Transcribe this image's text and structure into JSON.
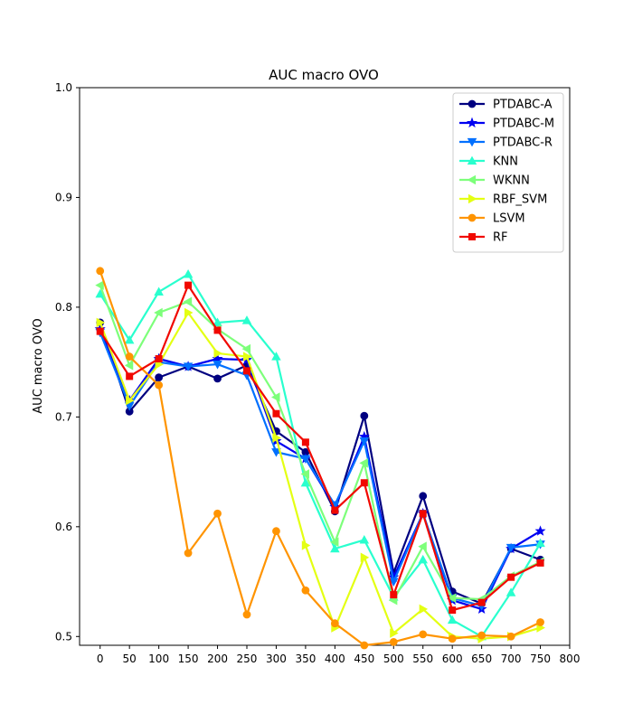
{
  "chart_data": {
    "type": "line",
    "title": "AUC macro OVO",
    "xlabel": "",
    "ylabel": "AUC macro OVO",
    "xlim": [
      -35,
      800
    ],
    "ylim": [
      0.492,
      1.0
    ],
    "xticks": [
      "0",
      "50",
      "100",
      "150",
      "200",
      "250",
      "300",
      "350",
      "400",
      "450",
      "500",
      "550",
      "600",
      "650",
      "700",
      "750",
      "800"
    ],
    "yticks": [
      "0.5",
      "0.6",
      "0.7",
      "0.8",
      "0.9",
      "1.0"
    ],
    "legend_position": "top-right",
    "grid": false,
    "x": [
      0,
      50,
      100,
      150,
      200,
      250,
      300,
      350,
      400,
      450,
      500,
      550,
      600,
      650,
      700,
      750
    ],
    "series": [
      {
        "name": "PTDABC-A",
        "color": "#000080",
        "marker": "circle",
        "values": [
          0.786,
          0.705,
          0.736,
          0.746,
          0.735,
          0.747,
          0.687,
          0.668,
          0.614,
          0.701,
          0.558,
          0.628,
          0.541,
          0.53,
          0.58,
          0.57
        ]
      },
      {
        "name": "PTDABC-M",
        "color": "#0000f1",
        "marker": "star",
        "values": [
          0.78,
          0.715,
          0.753,
          0.746,
          0.753,
          0.752,
          0.678,
          0.662,
          0.618,
          0.682,
          0.554,
          0.612,
          0.533,
          0.525,
          0.58,
          0.596
        ]
      },
      {
        "name": "PTDABC-R",
        "color": "#0070ff",
        "marker": "triangle-down",
        "values": [
          0.777,
          0.71,
          0.75,
          0.746,
          0.748,
          0.738,
          0.668,
          0.662,
          0.62,
          0.678,
          0.55,
          0.612,
          0.535,
          0.528,
          0.581,
          0.584
        ]
      },
      {
        "name": "KNN",
        "color": "#29ffce",
        "marker": "triangle-up",
        "values": [
          0.812,
          0.77,
          0.814,
          0.83,
          0.786,
          0.788,
          0.755,
          0.64,
          0.58,
          0.588,
          0.536,
          0.57,
          0.515,
          0.5,
          0.54,
          0.585
        ]
      },
      {
        "name": "WKNN",
        "color": "#7dff7a",
        "marker": "triangle-left",
        "values": [
          0.82,
          0.747,
          0.795,
          0.805,
          0.78,
          0.762,
          0.718,
          0.648,
          0.586,
          0.658,
          0.533,
          0.582,
          0.535,
          0.534,
          0.555,
          0.568
        ]
      },
      {
        "name": "RBF_SVM",
        "color": "#e4ff13",
        "marker": "triangle-right",
        "values": [
          0.786,
          0.715,
          0.748,
          0.795,
          0.758,
          0.755,
          0.681,
          0.583,
          0.508,
          0.572,
          0.503,
          0.525,
          0.5,
          0.498,
          0.5,
          0.508
        ]
      },
      {
        "name": "LSVM",
        "color": "#ff9400",
        "marker": "circle",
        "values": [
          0.833,
          0.755,
          0.729,
          0.576,
          0.612,
          0.52,
          0.596,
          0.542,
          0.512,
          0.492,
          0.495,
          0.502,
          0.498,
          0.501,
          0.5,
          0.513
        ]
      },
      {
        "name": "RF",
        "color": "#f10800",
        "marker": "square",
        "values": [
          0.778,
          0.737,
          0.753,
          0.82,
          0.779,
          0.742,
          0.703,
          0.677,
          0.615,
          0.64,
          0.538,
          0.612,
          0.524,
          0.531,
          0.554,
          0.567
        ]
      }
    ]
  }
}
